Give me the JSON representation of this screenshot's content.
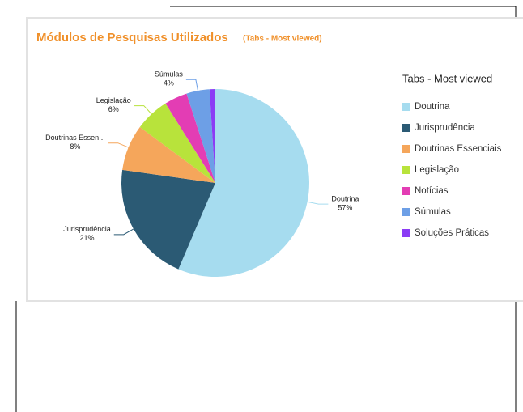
{
  "chart_data": {
    "type": "pie",
    "title": "Módulos de Pesquisas Utilizados",
    "subtitle": "(Tabs - Most viewed)",
    "legend_title": "Tabs - Most viewed",
    "legend_position": "right",
    "categories": [
      "Doutrina",
      "Jurisprudência",
      "Doutrinas Essenciais",
      "Legislação",
      "Notícias",
      "Súmulas",
      "Soluções Práticas"
    ],
    "values": [
      57,
      21,
      8,
      6,
      4,
      4,
      1
    ],
    "value_labels": [
      "57%",
      "21%",
      "8%",
      "6%",
      null,
      "4%",
      null
    ],
    "slice_labels": [
      "Doutrina",
      "Jurisprudência",
      "Doutrinas Essen...",
      "Legislação",
      null,
      "Súmulas",
      null
    ],
    "colors": [
      "#a6dcef",
      "#2b5a74",
      "#f5a65b",
      "#b8e33b",
      "#e33db4",
      "#6d9fe6",
      "#8b3cf5"
    ]
  }
}
